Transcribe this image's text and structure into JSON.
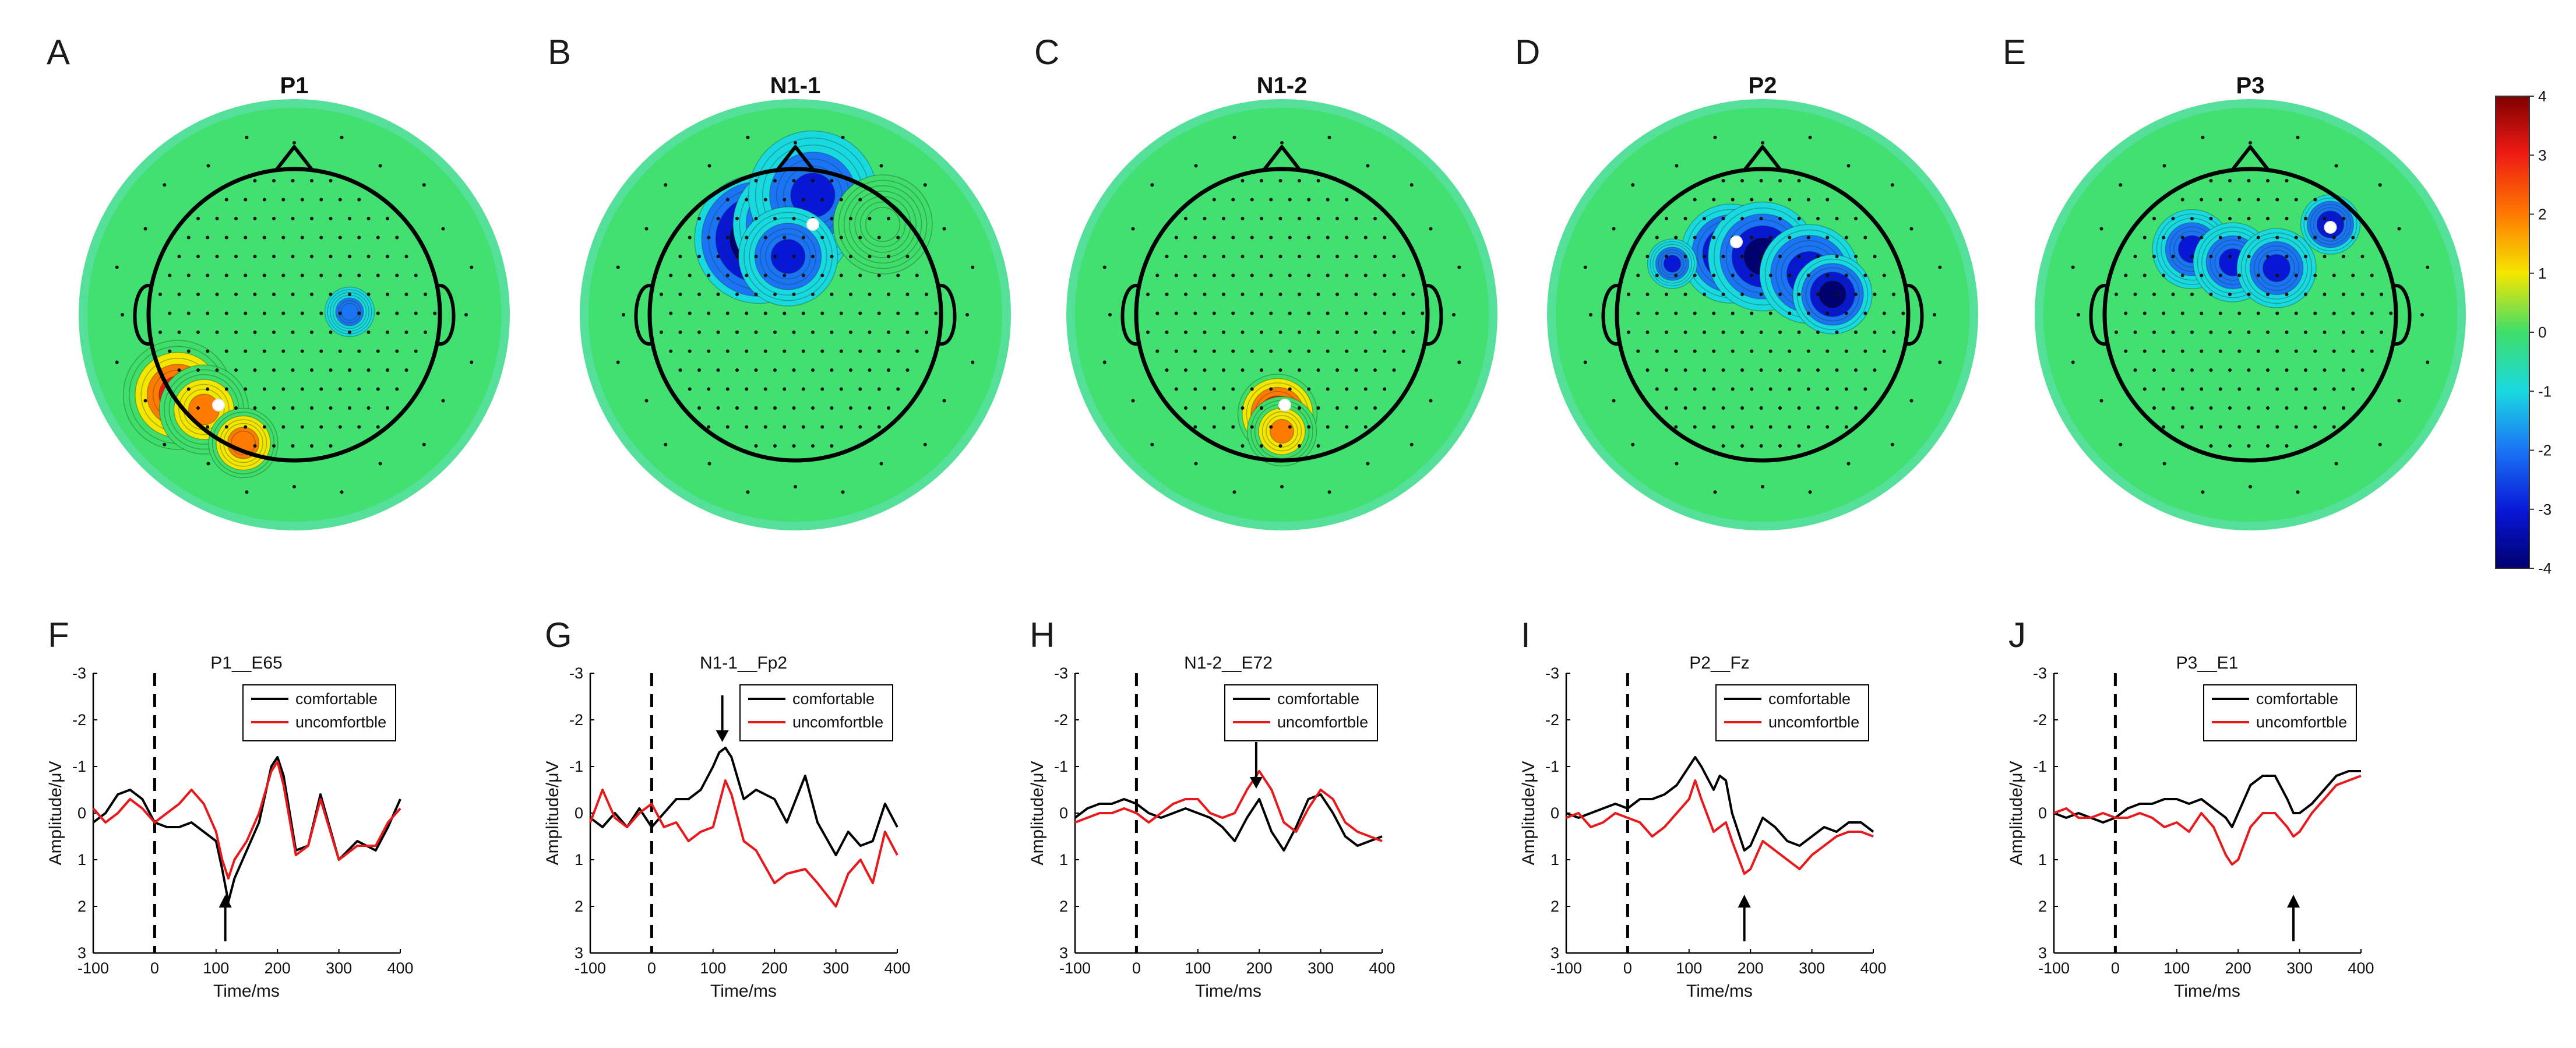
{
  "colors": {
    "comfortable": "#000000",
    "uncomfortable": "#e8191c",
    "map_neutral": "#3fde6a",
    "map_ring_outside": "#55e09a"
  },
  "colorbar": {
    "min": -4,
    "max": 4,
    "ticks": [
      "4",
      "3",
      "2",
      "1",
      "0",
      "-1",
      "-2",
      "-3",
      "-4"
    ]
  },
  "chart_data": [
    {
      "type": "heatmap",
      "panel": "A",
      "title": "P1",
      "blobs": [
        {
          "x": -0.8,
          "y": -0.55,
          "v": 3.3,
          "s": 0.11
        },
        {
          "x": -0.62,
          "y": -0.65,
          "v": 2.2,
          "s": 0.09
        },
        {
          "x": -0.35,
          "y": -0.88,
          "v": 2.6,
          "s": 0.07
        },
        {
          "x": 0.38,
          "y": 0.02,
          "v": -1.6,
          "s": 0.05
        }
      ],
      "peak": {
        "x": -0.52,
        "y": -0.62
      }
    },
    {
      "type": "heatmap",
      "panel": "B",
      "title": "N1-1",
      "blobs": [
        {
          "x": -0.25,
          "y": 0.52,
          "v": -3.6,
          "s": 0.13
        },
        {
          "x": -0.02,
          "y": 0.62,
          "v": -2.9,
          "s": 0.12
        },
        {
          "x": 0.12,
          "y": 0.82,
          "v": -2.0,
          "s": 0.13
        },
        {
          "x": -0.05,
          "y": 0.4,
          "v": -2.0,
          "s": 0.1
        },
        {
          "x": 0.6,
          "y": 0.62,
          "v": 0.9,
          "s": 0.1
        }
      ],
      "peak": {
        "x": 0.12,
        "y": 0.62
      }
    },
    {
      "type": "heatmap",
      "panel": "C",
      "title": "N1-2",
      "blobs": [
        {
          "x": -0.03,
          "y": -0.68,
          "v": 3.8,
          "s": 0.08
        },
        {
          "x": 0.0,
          "y": -0.8,
          "v": 2.2,
          "s": 0.07
        }
      ],
      "peak": {
        "x": 0.02,
        "y": -0.62
      }
    },
    {
      "type": "heatmap",
      "panel": "D",
      "title": "P2",
      "blobs": [
        {
          "x": -0.22,
          "y": 0.42,
          "v": -2.8,
          "s": 0.1
        },
        {
          "x": 0.0,
          "y": 0.4,
          "v": -3.0,
          "s": 0.11
        },
        {
          "x": 0.32,
          "y": 0.28,
          "v": -2.6,
          "s": 0.1
        },
        {
          "x": 0.48,
          "y": 0.14,
          "v": -3.0,
          "s": 0.08
        },
        {
          "x": -0.62,
          "y": 0.35,
          "v": -2.0,
          "s": 0.05
        }
      ],
      "peak": {
        "x": -0.18,
        "y": 0.5
      }
    },
    {
      "type": "heatmap",
      "panel": "E",
      "title": "P3",
      "blobs": [
        {
          "x": -0.4,
          "y": 0.45,
          "v": -2.2,
          "s": 0.08
        },
        {
          "x": -0.12,
          "y": 0.36,
          "v": -2.2,
          "s": 0.08
        },
        {
          "x": 0.18,
          "y": 0.32,
          "v": -2.0,
          "s": 0.08
        },
        {
          "x": 0.55,
          "y": 0.62,
          "v": -2.6,
          "s": 0.06
        }
      ],
      "peak": {
        "x": 0.55,
        "y": 0.6
      }
    },
    {
      "type": "line",
      "panel": "F",
      "title": "P1__E65",
      "xlabel": "Time/ms",
      "ylabel": "Amplitude/μV",
      "xlim": [
        -100,
        400
      ],
      "ylim": [
        3,
        -3
      ],
      "xticks": [
        "-100",
        "0",
        "100",
        "200",
        "300",
        "400"
      ],
      "yticks": [
        "-3",
        "-2",
        "-1",
        "0",
        "1",
        "2",
        "3"
      ],
      "series": [
        {
          "name": "comfortable",
          "x": [
            -100,
            -80,
            -60,
            -40,
            -20,
            0,
            20,
            40,
            60,
            80,
            100,
            110,
            120,
            130,
            150,
            170,
            190,
            200,
            210,
            230,
            250,
            270,
            300,
            330,
            360,
            380,
            400
          ],
          "values": [
            0.2,
            0,
            -0.4,
            -0.5,
            -0.3,
            0.2,
            0.3,
            0.3,
            0.2,
            0.4,
            0.6,
            1.2,
            1.9,
            1.4,
            0.8,
            0.2,
            -1.0,
            -1.2,
            -0.8,
            0.8,
            0.7,
            -0.4,
            1.0,
            0.6,
            0.8,
            0.3,
            -0.3
          ]
        },
        {
          "name": "uncomfortble",
          "x": [
            -100,
            -80,
            -60,
            -40,
            -20,
            0,
            20,
            40,
            60,
            80,
            100,
            110,
            120,
            130,
            150,
            170,
            190,
            200,
            210,
            230,
            250,
            270,
            300,
            330,
            360,
            380,
            400
          ],
          "values": [
            -0.1,
            0.2,
            0,
            -0.3,
            -0.1,
            0.2,
            0,
            -0.2,
            -0.5,
            -0.2,
            0.4,
            1.0,
            1.4,
            1.0,
            0.6,
            0,
            -0.9,
            -1.1,
            -0.6,
            0.9,
            0.7,
            -0.3,
            1.0,
            0.7,
            0.7,
            0.2,
            -0.1
          ]
        }
      ],
      "legend": [
        "comfortable",
        "uncomfortble"
      ],
      "arrow": {
        "x": 115,
        "dir": "up"
      }
    },
    {
      "type": "line",
      "panel": "G",
      "title": "N1-1__Fp2",
      "xlabel": "Time/ms",
      "ylabel": "Amplitude/μV",
      "xlim": [
        -100,
        400
      ],
      "ylim": [
        3,
        -3
      ],
      "xticks": [
        "-100",
        "0",
        "100",
        "200",
        "300",
        "400"
      ],
      "yticks": [
        "-3",
        "-2",
        "-1",
        "0",
        "1",
        "2",
        "3"
      ],
      "series": [
        {
          "name": "comfortable",
          "x": [
            -100,
            -80,
            -60,
            -40,
            -20,
            0,
            20,
            40,
            60,
            80,
            100,
            110,
            120,
            130,
            150,
            170,
            200,
            220,
            250,
            270,
            300,
            320,
            340,
            360,
            380,
            400
          ],
          "values": [
            0.1,
            0.3,
            0,
            0.3,
            -0.1,
            0.3,
            0,
            -0.3,
            -0.3,
            -0.5,
            -1.0,
            -1.3,
            -1.4,
            -1.2,
            -0.3,
            -0.5,
            -0.3,
            0.2,
            -0.8,
            0.2,
            0.9,
            0.4,
            0.7,
            0.6,
            -0.2,
            0.3
          ]
        },
        {
          "name": "uncomfortble",
          "x": [
            -100,
            -80,
            -60,
            -40,
            -20,
            0,
            20,
            40,
            60,
            80,
            100,
            110,
            120,
            130,
            150,
            170,
            200,
            220,
            250,
            270,
            300,
            320,
            340,
            360,
            380,
            400
          ],
          "values": [
            0.2,
            -0.5,
            0.1,
            0.3,
            0,
            -0.2,
            0.3,
            0.2,
            0.6,
            0.4,
            0.3,
            -0.2,
            -0.7,
            -0.4,
            0.6,
            0.8,
            1.5,
            1.3,
            1.2,
            1.5,
            2.0,
            1.3,
            1.0,
            1.5,
            0.4,
            0.9
          ]
        }
      ],
      "legend": [
        "comfortable",
        "uncomfortble"
      ],
      "arrow": {
        "x": 115,
        "dir": "down"
      }
    },
    {
      "type": "line",
      "panel": "H",
      "title": "N1-2__E72",
      "xlabel": "Time/ms",
      "ylabel": "Amplitude/μV",
      "xlim": [
        -100,
        400
      ],
      "ylim": [
        3,
        -3
      ],
      "xticks": [
        "-100",
        "0",
        "100",
        "200",
        "300",
        "400"
      ],
      "yticks": [
        "-3",
        "-2",
        "-1",
        "0",
        "1",
        "2",
        "3"
      ],
      "series": [
        {
          "name": "comfortable",
          "x": [
            -100,
            -80,
            -60,
            -40,
            -20,
            0,
            20,
            40,
            60,
            80,
            100,
            120,
            140,
            160,
            180,
            200,
            220,
            240,
            260,
            280,
            300,
            320,
            340,
            360,
            380,
            400
          ],
          "values": [
            0.1,
            -0.1,
            -0.2,
            -0.2,
            -0.3,
            -0.2,
            0,
            0.1,
            0,
            -0.1,
            0,
            0.1,
            0.3,
            0.6,
            0.1,
            -0.3,
            0.4,
            0.8,
            0.3,
            -0.3,
            -0.4,
            0,
            0.5,
            0.7,
            0.6,
            0.5
          ]
        },
        {
          "name": "uncomfortble",
          "x": [
            -100,
            -80,
            -60,
            -40,
            -20,
            0,
            20,
            40,
            60,
            80,
            100,
            120,
            140,
            160,
            180,
            200,
            220,
            240,
            260,
            280,
            300,
            320,
            340,
            360,
            380,
            400
          ],
          "values": [
            0.2,
            0.1,
            0,
            0,
            -0.1,
            0,
            0.2,
            0,
            -0.2,
            -0.3,
            -0.3,
            0,
            0.1,
            0,
            -0.5,
            -0.9,
            -0.5,
            0.2,
            0.4,
            -0.1,
            -0.5,
            -0.3,
            0.2,
            0.4,
            0.5,
            0.6
          ]
        }
      ],
      "legend": [
        "comfortable",
        "uncomfortble"
      ],
      "arrow": {
        "x": 195,
        "dir": "down"
      }
    },
    {
      "type": "line",
      "panel": "I",
      "title": "P2__Fz",
      "xlabel": "Time/ms",
      "ylabel": "Amplitude/μV",
      "xlim": [
        -100,
        400
      ],
      "ylim": [
        3,
        -3
      ],
      "xticks": [
        "-100",
        "0",
        "100",
        "200",
        "300",
        "400"
      ],
      "yticks": [
        "-3",
        "-2",
        "-1",
        "0",
        "1",
        "2",
        "3"
      ],
      "series": [
        {
          "name": "comfortable",
          "x": [
            -100,
            -80,
            -60,
            -40,
            -20,
            0,
            20,
            40,
            60,
            80,
            100,
            110,
            120,
            140,
            150,
            160,
            170,
            190,
            200,
            220,
            240,
            260,
            280,
            300,
            320,
            340,
            360,
            380,
            400
          ],
          "values": [
            0,
            0.1,
            0,
            -0.1,
            -0.2,
            -0.1,
            -0.3,
            -0.3,
            -0.4,
            -0.6,
            -1.0,
            -1.2,
            -1.0,
            -0.5,
            -0.8,
            -0.7,
            0,
            0.8,
            0.7,
            0.1,
            0.3,
            0.6,
            0.7,
            0.5,
            0.3,
            0.4,
            0.2,
            0.2,
            0.4
          ]
        },
        {
          "name": "uncomfortble",
          "x": [
            -100,
            -80,
            -60,
            -40,
            -20,
            0,
            20,
            40,
            60,
            80,
            100,
            110,
            120,
            140,
            150,
            160,
            170,
            190,
            200,
            220,
            240,
            260,
            280,
            300,
            320,
            340,
            360,
            380,
            400
          ],
          "values": [
            0.1,
            0,
            0.3,
            0.2,
            0,
            0.1,
            0.2,
            0.5,
            0.3,
            0,
            -0.3,
            -0.7,
            -0.3,
            0.4,
            0.3,
            0.2,
            0.6,
            1.3,
            1.2,
            0.6,
            0.8,
            1.0,
            1.2,
            0.9,
            0.7,
            0.5,
            0.4,
            0.4,
            0.5
          ]
        }
      ],
      "legend": [
        "comfortable",
        "uncomfortble"
      ],
      "arrow": {
        "x": 190,
        "dir": "up"
      }
    },
    {
      "type": "line",
      "panel": "J",
      "title": "P3__E1",
      "xlabel": "Time/ms",
      "ylabel": "Amplitude/μV",
      "xlim": [
        -100,
        400
      ],
      "ylim": [
        3,
        -3
      ],
      "xticks": [
        "-100",
        "0",
        "100",
        "200",
        "300",
        "400"
      ],
      "yticks": [
        "-3",
        "-2",
        "-1",
        "0",
        "1",
        "2",
        "3"
      ],
      "series": [
        {
          "name": "comfortable",
          "x": [
            -100,
            -80,
            -60,
            -40,
            -20,
            0,
            20,
            40,
            60,
            80,
            100,
            120,
            140,
            160,
            180,
            190,
            200,
            220,
            240,
            260,
            280,
            290,
            300,
            320,
            340,
            360,
            380,
            400
          ],
          "values": [
            0,
            0.1,
            0,
            0.1,
            0.2,
            0.1,
            -0.1,
            -0.2,
            -0.2,
            -0.3,
            -0.3,
            -0.2,
            -0.3,
            -0.1,
            0.1,
            0.3,
            0,
            -0.6,
            -0.8,
            -0.8,
            -0.3,
            0,
            0,
            -0.2,
            -0.5,
            -0.8,
            -0.9,
            -0.9
          ]
        },
        {
          "name": "uncomfortble",
          "x": [
            -100,
            -80,
            -60,
            -40,
            -20,
            0,
            20,
            40,
            60,
            80,
            100,
            120,
            140,
            160,
            180,
            190,
            200,
            220,
            240,
            260,
            280,
            290,
            300,
            320,
            340,
            360,
            380,
            400
          ],
          "values": [
            0,
            -0.1,
            0.1,
            0.1,
            0,
            0.1,
            0.1,
            0,
            0.1,
            0.3,
            0.2,
            0.4,
            0,
            0.3,
            0.9,
            1.1,
            1.0,
            0.3,
            0,
            0,
            0.3,
            0.5,
            0.4,
            0,
            -0.3,
            -0.6,
            -0.7,
            -0.8
          ]
        }
      ],
      "legend": [
        "comfortable",
        "uncomfortble"
      ],
      "arrow": {
        "x": 290,
        "dir": "up"
      }
    }
  ]
}
